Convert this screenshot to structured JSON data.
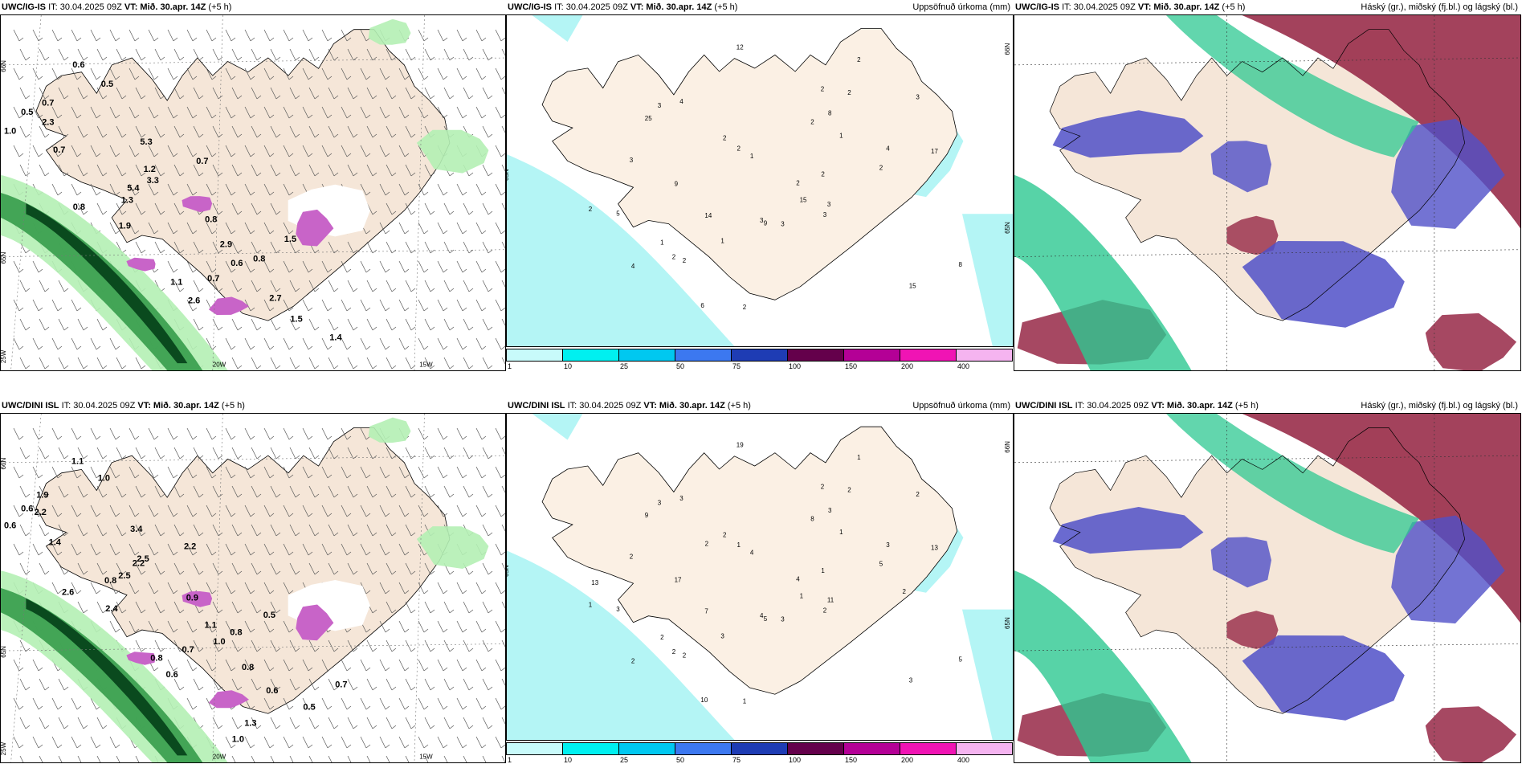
{
  "rows": [
    {
      "model": "UWC/IG-IS",
      "it": "IT: 30.04.2025 09Z",
      "vt": "VT: Mið. 30.apr. 14Z",
      "lead": "(+5 h)",
      "left_labels": [
        "0.5",
        "0.6",
        "1.0",
        "0.5",
        "0.7",
        "0.7",
        "1.2",
        "2.3",
        "5.4",
        "5.3",
        "0.8",
        "0.7",
        "1.9",
        "3.3",
        "2.9",
        "1.3",
        "0.6",
        "0.8",
        "1.1",
        "1.5",
        "2.6",
        "0.8",
        "1.5",
        "0.7",
        "1.4",
        "2.7"
      ],
      "left_ticks": [
        "66N",
        "65N",
        "25W",
        "20W",
        "15W"
      ],
      "mid_numbers": [
        "3",
        "1",
        "2",
        "2",
        "2",
        "1",
        "2",
        "4",
        "8",
        "15",
        "5",
        "2",
        "6",
        "2",
        "3",
        "3",
        "2",
        "9",
        "3",
        "8",
        "4",
        "3",
        "2",
        "25",
        "15",
        "12",
        "14",
        "17",
        "9",
        "3",
        "2",
        "2",
        "3",
        "1",
        "1",
        "4",
        "2",
        "2",
        "2"
      ],
      "mid_ticks": [
        "66N",
        "65N"
      ]
    },
    {
      "model": "UWC/DINI ISL",
      "it": "IT: 30.04.2025 09Z",
      "vt": "VT: Mið. 30.apr. 14Z",
      "lead": "(+5 h)",
      "left_labels": [
        "0.6",
        "1.1",
        "0.6",
        "1.0",
        "1.4",
        "1.9",
        "2.5",
        "2.2",
        "2.5",
        "3.4",
        "2.6",
        "2.2",
        "2.4",
        "2.2",
        "1.1",
        "0.8",
        "1.0",
        "0.9",
        "0.8",
        "0.5",
        "0.6",
        "0.8",
        "0.6",
        "0.7",
        "0.5",
        "0.8",
        "1.3",
        "0.7",
        "1.0"
      ],
      "left_ticks": [
        "66N",
        "65N",
        "25W",
        "20W",
        "15W"
      ],
      "mid_numbers": [
        "4",
        "1",
        "1",
        "1",
        "1",
        "2",
        "2",
        "2",
        "3",
        "1",
        "3",
        "2",
        "10",
        "2",
        "2",
        "2",
        "5",
        "5",
        "3",
        "5",
        "3",
        "3",
        "4",
        "9",
        "3",
        "19",
        "7",
        "13",
        "17",
        "11",
        "8",
        "2",
        "2",
        "3",
        "4",
        "3",
        "2",
        "1",
        "1",
        "2",
        "2",
        "13"
      ],
      "mid_ticks": [
        "66N",
        "65N"
      ]
    }
  ],
  "mid_title": "Uppsöfnuð úrkoma (mm)",
  "right_title": "Háský (gr.), miðský (fj.bl.) og lágský (bl.)",
  "colorbar": {
    "ticks": [
      "1",
      "10",
      "25",
      "50",
      "75",
      "100",
      "150",
      "200",
      "400"
    ],
    "colors": [
      "#c8fafa",
      "#00f0f0",
      "#00c8f0",
      "#3c78f0",
      "#1e3cb4",
      "#64004b",
      "#b40096",
      "#f014b4",
      "#f5b4f0"
    ]
  },
  "colors": {
    "land": "#f5e6d8",
    "land_mid": "#fbf0e4",
    "precip_light": "#b4f5f5",
    "precip_cyan": "#00e6e6",
    "rain_green_light": "#b4f0b4",
    "rain_green": "#3ca050",
    "rain_green_dark": "#0a4a1e",
    "snow_magenta": "#c864c8",
    "cloud_high": "#962846",
    "cloud_mid": "#2dc891",
    "cloud_low": "#5050c8"
  }
}
